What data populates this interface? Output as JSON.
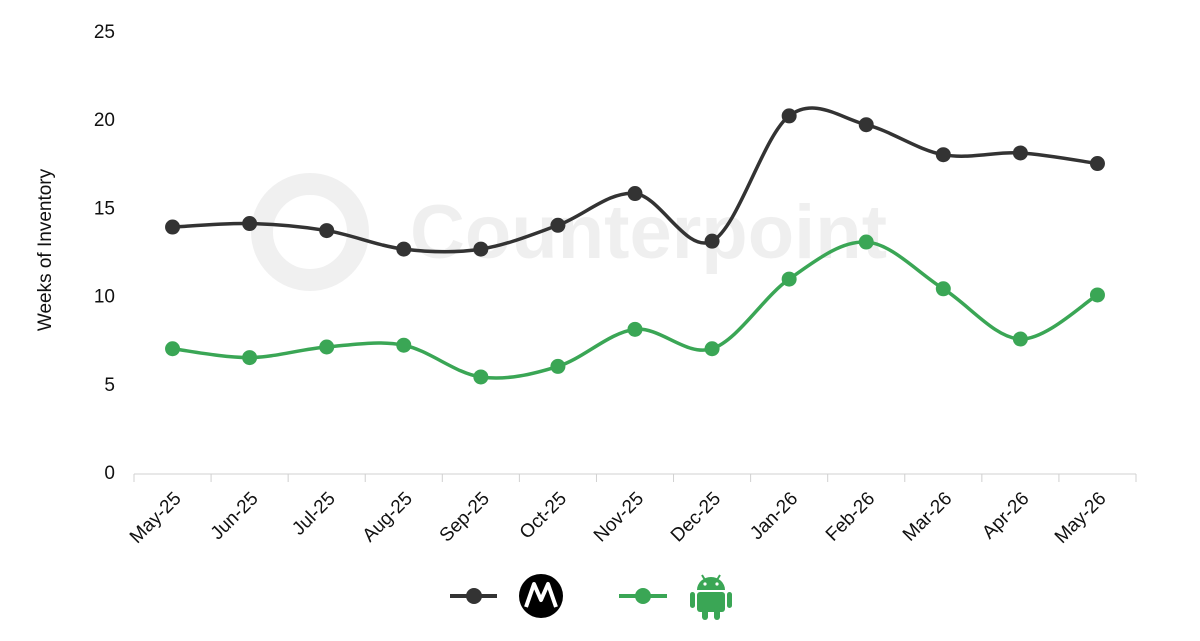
{
  "chart_data": {
    "type": "line",
    "y_label": "Weeks of Inventory",
    "watermark": "Counterpoint",
    "categories": [
      "May-25",
      "Jun-25",
      "Jul-25",
      "Aug-25",
      "Sep-25",
      "Oct-25",
      "Nov-25",
      "Dec-25",
      "Jan-26",
      "Feb-26",
      "Mar-26",
      "Apr-26",
      "May-26"
    ],
    "series": [
      {
        "color": "#333333",
        "values": [
          14.0,
          14.2,
          13.8,
          12.75,
          12.75,
          14.1,
          15.9,
          13.2,
          20.3,
          19.8,
          18.1,
          18.2,
          17.6
        ]
      },
      {
        "color": "#3aa655",
        "values": [
          7.1,
          6.6,
          7.2,
          7.3,
          5.5,
          6.1,
          8.2,
          7.1,
          11.05,
          13.15,
          10.5,
          7.65,
          10.15
        ]
      }
    ],
    "ylim": [
      0,
      25
    ],
    "yticks": [
      0,
      5,
      10,
      15,
      20,
      25
    ],
    "grid": false,
    "smooth": true
  }
}
